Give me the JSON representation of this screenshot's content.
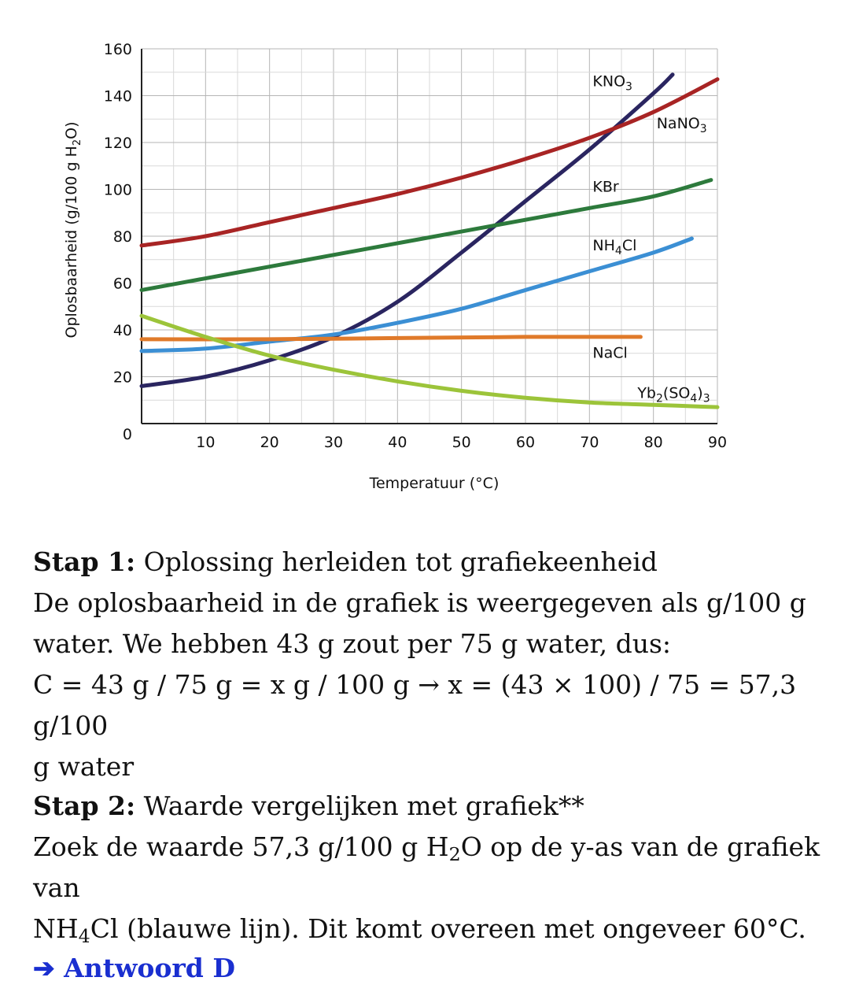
{
  "chart_data": {
    "type": "line",
    "title": "",
    "xlabel": "Temperatuur (°C)",
    "ylabel": "Oplosbaarheid (g/100 g H2O)",
    "xlim": [
      0,
      90
    ],
    "ylim": [
      0,
      160
    ],
    "xticks": [
      10,
      20,
      30,
      40,
      50,
      60,
      70,
      80,
      90
    ],
    "yticks": [
      20,
      40,
      60,
      80,
      100,
      120,
      140,
      160
    ],
    "origin_label": "0",
    "grid": true,
    "series": [
      {
        "name": "KNO3",
        "label_main": "KNO",
        "label_sub": "3",
        "label_tail": "",
        "color": "#2a2560",
        "x": [
          0,
          10,
          20,
          30,
          40,
          50,
          60,
          70,
          80,
          83
        ],
        "y": [
          16,
          20,
          27,
          37,
          52,
          73,
          95,
          117,
          141,
          149
        ]
      },
      {
        "name": "NaNO3",
        "label_main": "NaNO",
        "label_sub": "3",
        "label_tail": "",
        "color": "#a82424",
        "x": [
          0,
          10,
          20,
          30,
          40,
          50,
          60,
          70,
          80,
          90
        ],
        "y": [
          76,
          80,
          86,
          92,
          98,
          105,
          113,
          122,
          133,
          147
        ]
      },
      {
        "name": "KBr",
        "label_main": "KBr",
        "label_sub": "",
        "label_tail": "",
        "color": "#2d7a3c",
        "x": [
          0,
          10,
          20,
          30,
          40,
          50,
          60,
          70,
          80,
          89
        ],
        "y": [
          57,
          62,
          67,
          72,
          77,
          82,
          87,
          92,
          97,
          104
        ]
      },
      {
        "name": "NH4Cl",
        "label_main": "NH",
        "label_sub": "4",
        "label_tail": "Cl",
        "color": "#3b8fd4",
        "x": [
          0,
          10,
          20,
          30,
          40,
          50,
          60,
          70,
          80,
          86
        ],
        "y": [
          31,
          32,
          35,
          38,
          43,
          49,
          57,
          65,
          73,
          79
        ]
      },
      {
        "name": "NaCl",
        "label_main": "NaCl",
        "label_sub": "",
        "label_tail": "",
        "color": "#e07a2a",
        "x": [
          0,
          20,
          40,
          60,
          78
        ],
        "y": [
          36,
          36,
          36.5,
          37,
          37
        ]
      },
      {
        "name": "Yb2(SO4)3",
        "label_main": "Yb",
        "label_sub": "2",
        "label_tail": "(SO",
        "label_sub2": "4",
        "label_tail2": ")",
        "label_sub3": "3",
        "color": "#9cc43a",
        "x": [
          0,
          10,
          20,
          30,
          40,
          50,
          60,
          70,
          80,
          90
        ],
        "y": [
          46,
          37,
          29,
          23,
          18,
          14,
          11,
          9,
          8,
          7
        ]
      }
    ]
  },
  "step1": {
    "heading": "Stap 1:",
    "title": " Oplossing herleiden tot grafiekeenheid",
    "line1": "De oplosbaarheid in de grafiek is weergegeven als g/100 g",
    "line2": "water. We hebben 43 g zout per 75 g water, dus:",
    "line3": "C = 43 g / 75 g = x g / 100 g → x = (43 × 100) / 75 = 57,3 g/100",
    "line4": "g water"
  },
  "step2": {
    "heading": "Stap 2:",
    "title": " Waarde vergelijken met grafiek**",
    "line1a": "Zoek de waarde 57,3 g/100 g H",
    "line1sub": "2",
    "line1b": "O op de y-as van de grafiek van",
    "line2a": "NH",
    "line2sub": "4",
    "line2b": "Cl (blauwe lijn). Dit komt overeen met ongeveer 60°C."
  },
  "answer": "➔ Antwoord D"
}
